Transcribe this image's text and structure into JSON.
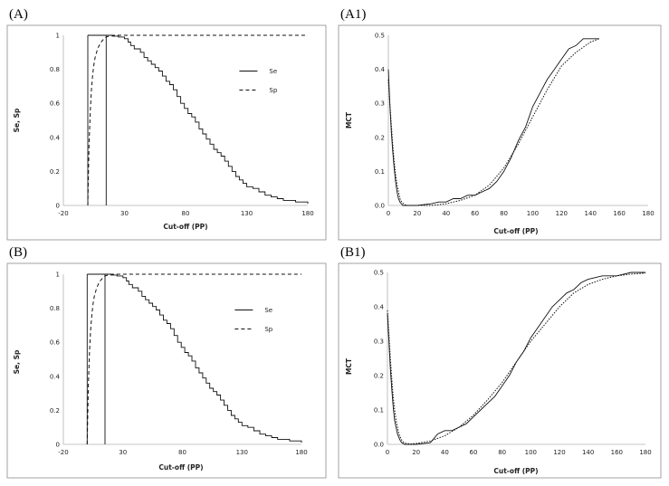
{
  "chart_data": [
    {
      "panel": "(A)",
      "type": "line",
      "xlabel": "Cut-off (PP)",
      "ylabel": "Se, Sp",
      "xlim": [
        -20,
        180
      ],
      "ylim": [
        0,
        1
      ],
      "xticks": [
        "-20",
        "30",
        "80",
        "130",
        "180"
      ],
      "yticks": [
        "0",
        "0.2",
        "0.4",
        "0.6",
        "0.8",
        "1"
      ],
      "legend": "right",
      "series": [
        {
          "name": "Se",
          "style": "solid",
          "step": true,
          "x": [
            0,
            15,
            20,
            25,
            28,
            30,
            33,
            35,
            38,
            40,
            43,
            46,
            49,
            52,
            55,
            58,
            61,
            64,
            67,
            70,
            73,
            76,
            79,
            82,
            85,
            88,
            91,
            94,
            97,
            100,
            103,
            106,
            109,
            112,
            115,
            118,
            121,
            124,
            127,
            130,
            135,
            140,
            145,
            150,
            155,
            160,
            165,
            170,
            175,
            180
          ],
          "y": [
            1,
            1,
            0.995,
            0.99,
            0.99,
            0.98,
            0.96,
            0.94,
            0.92,
            0.92,
            0.9,
            0.87,
            0.85,
            0.83,
            0.81,
            0.79,
            0.76,
            0.73,
            0.71,
            0.68,
            0.64,
            0.6,
            0.57,
            0.54,
            0.52,
            0.49,
            0.45,
            0.42,
            0.39,
            0.36,
            0.33,
            0.31,
            0.29,
            0.26,
            0.23,
            0.2,
            0.17,
            0.15,
            0.13,
            0.11,
            0.1,
            0.08,
            0.06,
            0.05,
            0.04,
            0.03,
            0.03,
            0.02,
            0.02,
            0.01
          ]
        },
        {
          "name": "Sp",
          "style": "dashed",
          "x": [
            0,
            1,
            2,
            3,
            4,
            5,
            6,
            8,
            10,
            12,
            15,
            20,
            40,
            80,
            120,
            180
          ],
          "y": [
            0,
            0.35,
            0.55,
            0.68,
            0.77,
            0.83,
            0.87,
            0.92,
            0.95,
            0.97,
            0.99,
            1,
            1,
            1,
            1,
            1
          ]
        },
        {
          "name": "",
          "style": "solid",
          "type": "vline",
          "x": [
            0,
            15
          ],
          "y": [
            0,
            1
          ]
        }
      ]
    },
    {
      "panel": "(A1)",
      "type": "line",
      "xlabel": "Cut-off (PP)",
      "ylabel": "MCT",
      "xlim": [
        0,
        180
      ],
      "ylim": [
        0,
        0.5
      ],
      "xticks": [
        "0",
        "20",
        "40",
        "60",
        "80",
        "100",
        "120",
        "140",
        "160",
        "180"
      ],
      "yticks": [
        "0.0",
        "0.1",
        "0.2",
        "0.3",
        "0.4",
        "0.5"
      ],
      "series": [
        {
          "name": "",
          "style": "solid",
          "x": [
            0,
            1,
            2,
            3,
            4,
            5,
            6,
            7,
            8,
            9,
            10,
            12,
            20,
            30,
            35,
            40,
            45,
            50,
            55,
            60,
            65,
            70,
            75,
            80,
            85,
            90,
            95,
            100,
            105,
            110,
            115,
            120,
            125,
            130,
            135,
            140,
            146
          ],
          "y": [
            0.4,
            0.3,
            0.22,
            0.16,
            0.11,
            0.07,
            0.04,
            0.02,
            0.01,
            0.005,
            0,
            0,
            0,
            0.005,
            0.01,
            0.01,
            0.02,
            0.02,
            0.03,
            0.03,
            0.04,
            0.05,
            0.07,
            0.1,
            0.14,
            0.19,
            0.23,
            0.29,
            0.33,
            0.37,
            0.4,
            0.43,
            0.46,
            0.47,
            0.49,
            0.49,
            0.49
          ]
        },
        {
          "name": "",
          "style": "dotted",
          "x": [
            0,
            1,
            2,
            3,
            4,
            5,
            6,
            7,
            8,
            9,
            10,
            11,
            12,
            14,
            20,
            30,
            40,
            50,
            60,
            70,
            80,
            90,
            100,
            110,
            120,
            130,
            140,
            146
          ],
          "y": [
            0.37,
            0.3,
            0.24,
            0.18,
            0.13,
            0.09,
            0.06,
            0.04,
            0.02,
            0.012,
            0.007,
            0.003,
            0.001,
            0,
            0,
            0,
            0.005,
            0.015,
            0.03,
            0.06,
            0.11,
            0.18,
            0.26,
            0.34,
            0.41,
            0.45,
            0.48,
            0.49
          ]
        }
      ]
    },
    {
      "panel": "(B)",
      "type": "line",
      "xlabel": "Cut-off (PP)",
      "ylabel": "Se, Sp",
      "xlim": [
        -20,
        180
      ],
      "ylim": [
        0,
        1
      ],
      "xticks": [
        "-20",
        "30",
        "80",
        "130",
        "180"
      ],
      "yticks": [
        "0",
        "0.2",
        "0.4",
        "0.6",
        "0.8",
        "1"
      ],
      "legend": "right",
      "series": [
        {
          "name": "Se",
          "style": "solid",
          "step": true,
          "x": [
            0,
            15,
            20,
            25,
            28,
            30,
            33,
            35,
            38,
            40,
            43,
            46,
            49,
            52,
            55,
            58,
            61,
            64,
            67,
            70,
            73,
            76,
            79,
            82,
            85,
            88,
            91,
            94,
            97,
            100,
            103,
            106,
            109,
            112,
            115,
            118,
            121,
            124,
            127,
            130,
            135,
            140,
            145,
            150,
            155,
            160,
            165,
            170,
            175,
            180
          ],
          "y": [
            1,
            1,
            0.995,
            0.99,
            0.99,
            0.98,
            0.96,
            0.94,
            0.92,
            0.92,
            0.9,
            0.87,
            0.85,
            0.83,
            0.81,
            0.79,
            0.76,
            0.73,
            0.71,
            0.68,
            0.64,
            0.6,
            0.57,
            0.54,
            0.52,
            0.49,
            0.45,
            0.42,
            0.39,
            0.36,
            0.33,
            0.31,
            0.29,
            0.26,
            0.23,
            0.2,
            0.17,
            0.15,
            0.13,
            0.11,
            0.1,
            0.08,
            0.06,
            0.05,
            0.04,
            0.03,
            0.03,
            0.02,
            0.02,
            0.01
          ]
        },
        {
          "name": "Sp",
          "style": "dashed",
          "x": [
            0,
            1,
            2,
            3,
            4,
            5,
            6,
            8,
            10,
            12,
            15,
            20,
            40,
            80,
            120,
            180
          ],
          "y": [
            0,
            0.35,
            0.55,
            0.68,
            0.77,
            0.83,
            0.87,
            0.92,
            0.95,
            0.97,
            0.99,
            1,
            1,
            1,
            1,
            1
          ]
        },
        {
          "name": "",
          "style": "solid",
          "type": "vline",
          "x": [
            0,
            15
          ],
          "y": [
            0,
            1
          ]
        }
      ]
    },
    {
      "panel": "(B1)",
      "type": "line",
      "xlabel": "Cut-off (PP)",
      "ylabel": "MCT",
      "xlim": [
        0,
        180
      ],
      "ylim": [
        0,
        0.5
      ],
      "xticks": [
        "0",
        "20",
        "40",
        "60",
        "80",
        "100",
        "120",
        "140",
        "160",
        "180"
      ],
      "yticks": [
        "0.0",
        "0.1",
        "0.2",
        "0.3",
        "0.4",
        "0.5"
      ],
      "series": [
        {
          "name": "",
          "style": "solid",
          "x": [
            0,
            1,
            2,
            3,
            4,
            5,
            6,
            7,
            8,
            9,
            10,
            12,
            20,
            30,
            35,
            40,
            45,
            50,
            55,
            60,
            65,
            70,
            75,
            80,
            85,
            90,
            95,
            100,
            105,
            110,
            115,
            120,
            125,
            130,
            135,
            140,
            150,
            160,
            170,
            180
          ],
          "y": [
            0.38,
            0.3,
            0.22,
            0.16,
            0.11,
            0.07,
            0.05,
            0.03,
            0.02,
            0.01,
            0.005,
            0,
            0,
            0.005,
            0.03,
            0.04,
            0.04,
            0.05,
            0.06,
            0.08,
            0.1,
            0.12,
            0.14,
            0.17,
            0.2,
            0.24,
            0.27,
            0.31,
            0.34,
            0.37,
            0.4,
            0.42,
            0.44,
            0.45,
            0.47,
            0.48,
            0.49,
            0.49,
            0.5,
            0.5
          ]
        },
        {
          "name": "",
          "style": "dotted",
          "x": [
            0,
            1,
            2,
            3,
            4,
            5,
            6,
            7,
            8,
            9,
            10,
            11,
            12,
            14,
            16,
            20,
            30,
            40,
            50,
            60,
            70,
            80,
            90,
            100,
            110,
            120,
            130,
            140,
            150,
            160,
            170,
            180
          ],
          "y": [
            0.39,
            0.32,
            0.25,
            0.19,
            0.14,
            0.1,
            0.07,
            0.05,
            0.03,
            0.02,
            0.012,
            0.007,
            0.004,
            0.002,
            0.001,
            0.003,
            0.01,
            0.025,
            0.05,
            0.085,
            0.13,
            0.18,
            0.24,
            0.3,
            0.35,
            0.4,
            0.44,
            0.465,
            0.48,
            0.49,
            0.495,
            0.498
          ]
        }
      ]
    }
  ]
}
